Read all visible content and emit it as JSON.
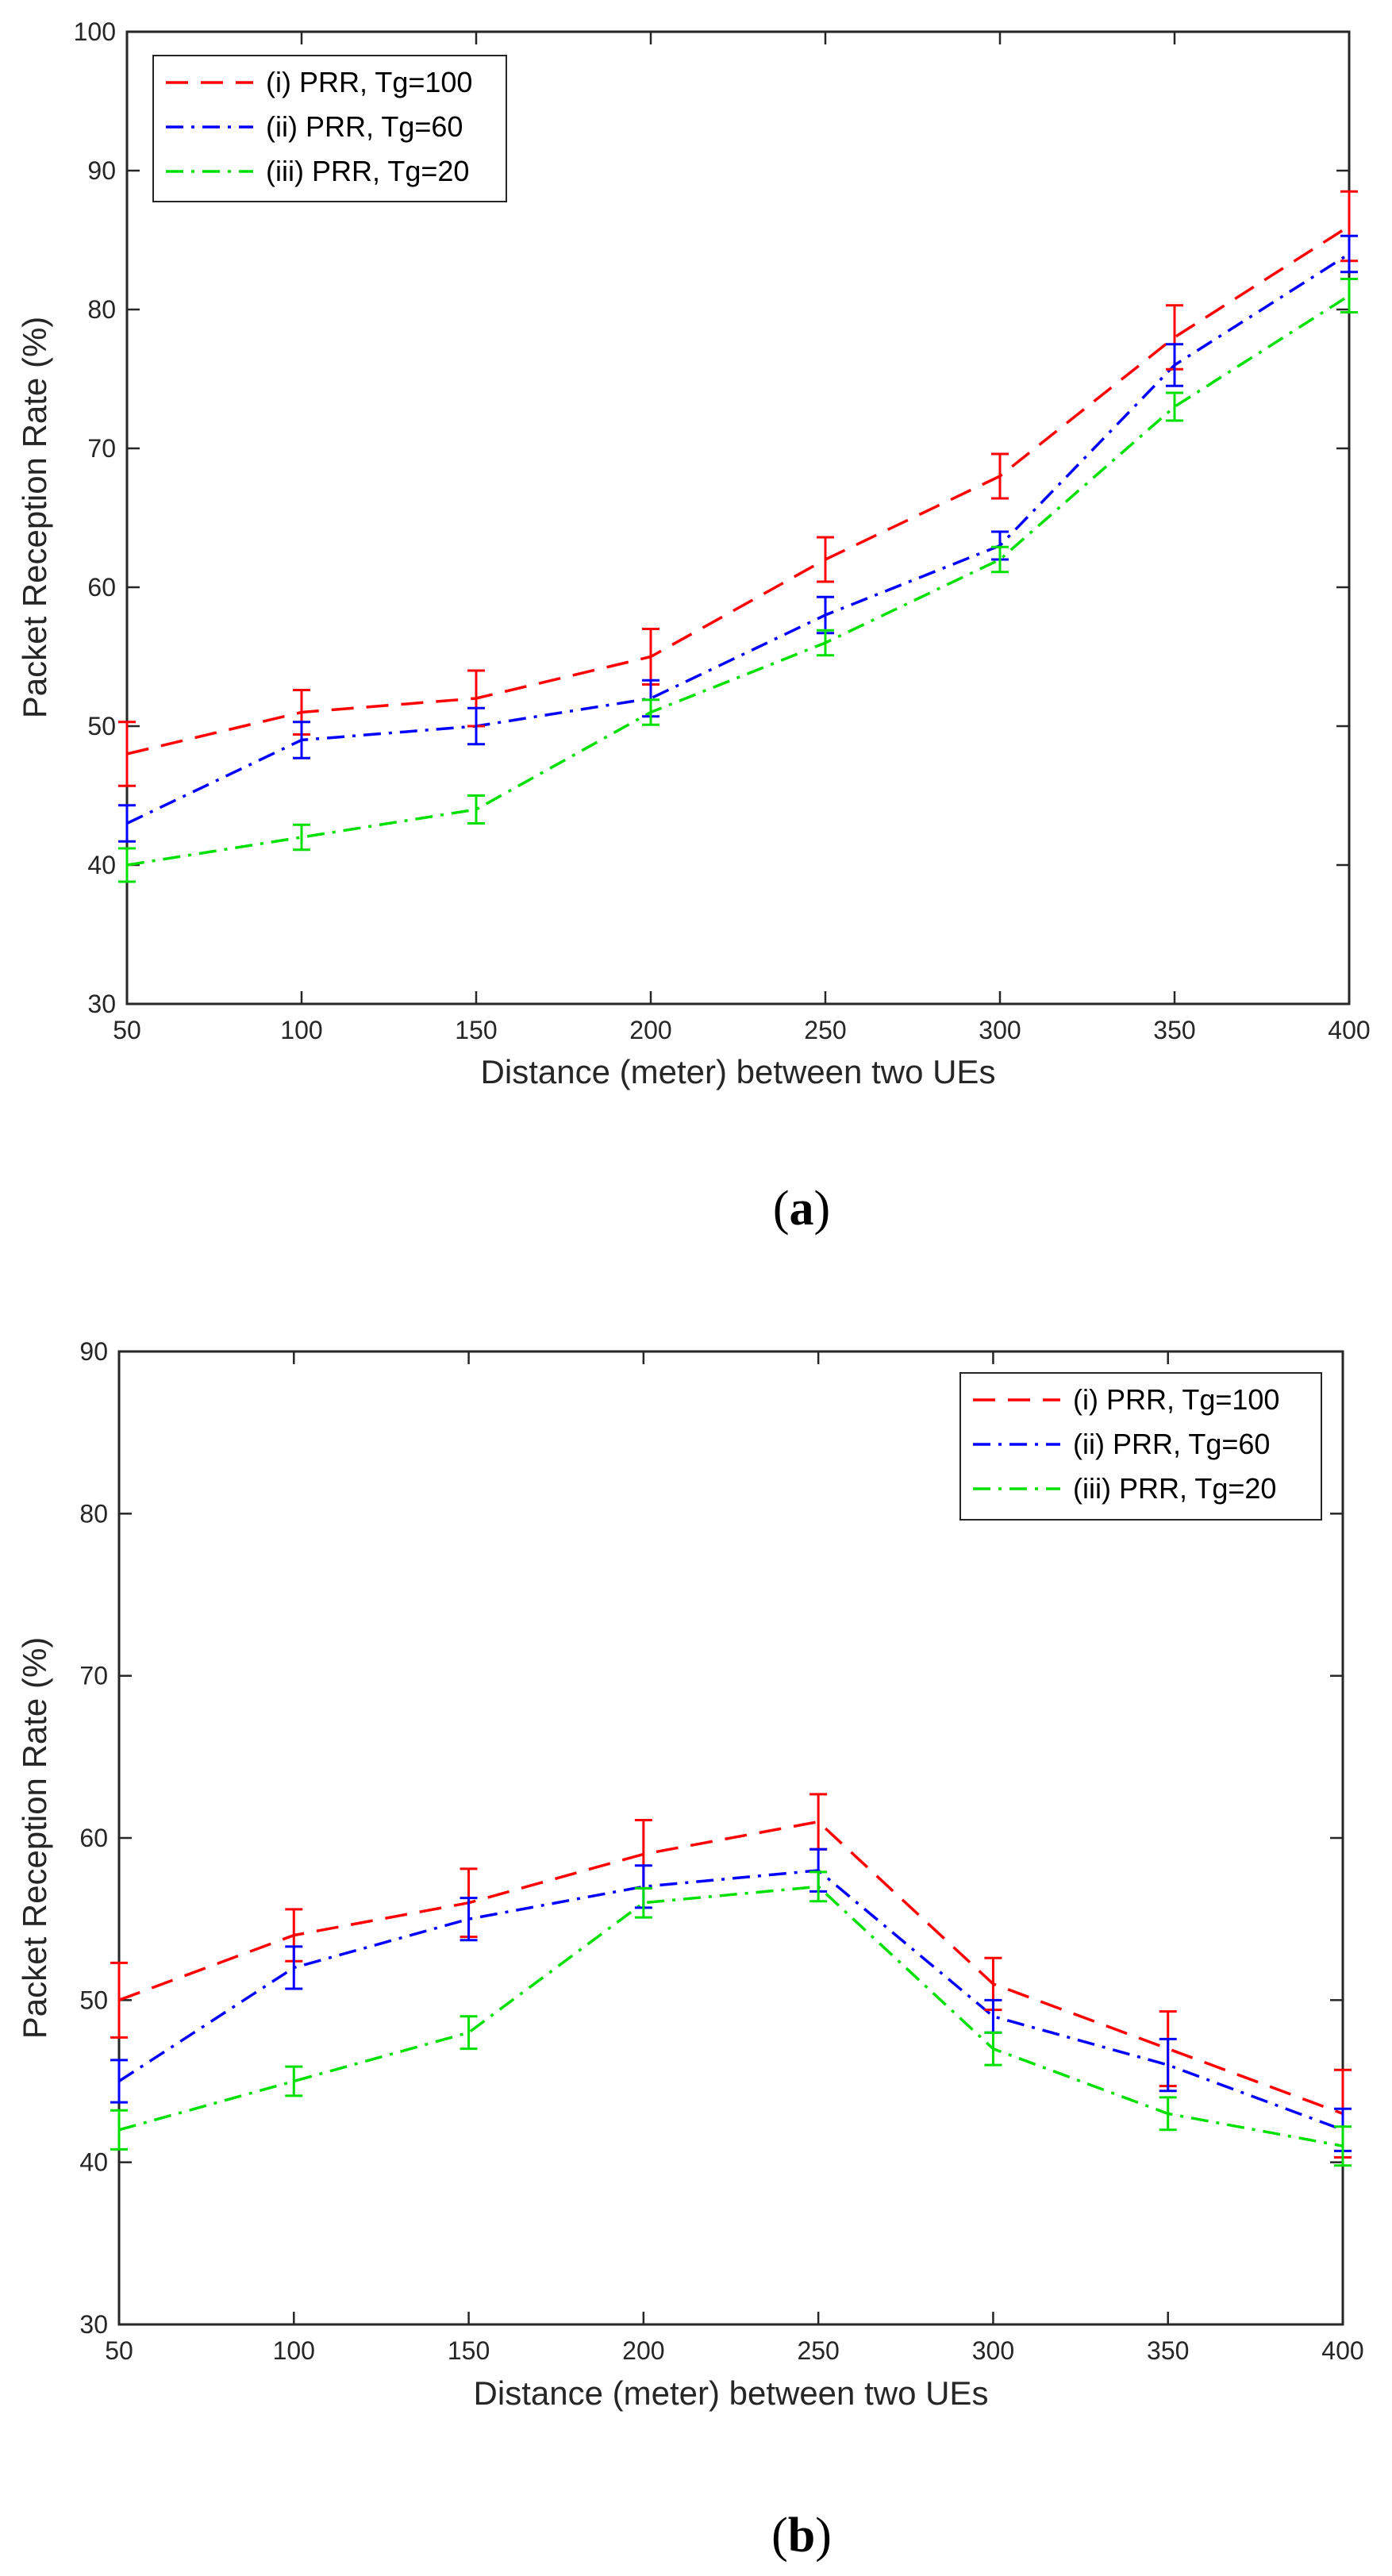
{
  "chart_data": [
    {
      "id": "a",
      "type": "line",
      "caption_letter": "a",
      "title": "",
      "xlabel": "Distance (meter) between two UEs",
      "ylabel": "Packet Reception Rate (%)",
      "xlim": [
        50,
        400
      ],
      "ylim": [
        30,
        100
      ],
      "grid": false,
      "legend_position": "top-left",
      "x": [
        50,
        100,
        150,
        200,
        250,
        300,
        350,
        400
      ],
      "xticks": [
        "50",
        "100",
        "150",
        "200",
        "250",
        "300",
        "350",
        "400"
      ],
      "yticks": [
        "30",
        "40",
        "50",
        "60",
        "70",
        "80",
        "90",
        "100"
      ],
      "series": [
        {
          "name": "(i) PRR, Tg=100",
          "color": "#ff0000",
          "dash": "dashed",
          "values": [
            48,
            51,
            52,
            55,
            62,
            68,
            78,
            86
          ],
          "errors": [
            2.3,
            1.6,
            2.0,
            2.0,
            1.6,
            1.6,
            2.3,
            2.5
          ]
        },
        {
          "name": "(ii) PRR, Tg=60",
          "color": "#0000ff",
          "dash": "dashdot",
          "values": [
            43,
            49,
            50,
            52,
            58,
            63,
            76,
            84
          ],
          "errors": [
            1.3,
            1.3,
            1.3,
            1.3,
            1.3,
            1.0,
            1.5,
            1.3
          ]
        },
        {
          "name": "(iii) PRR, Tg=20",
          "color": "#00e000",
          "dash": "dashdot",
          "values": [
            40,
            42,
            44,
            51,
            56,
            62,
            73,
            81
          ],
          "errors": [
            1.2,
            0.9,
            1.0,
            0.9,
            0.9,
            0.9,
            1.0,
            1.2
          ]
        }
      ]
    },
    {
      "id": "b",
      "type": "line",
      "caption_letter": "b",
      "title": "",
      "xlabel": "Distance (meter) between two UEs",
      "ylabel": "Packet Reception Rate (%)",
      "xlim": [
        50,
        400
      ],
      "ylim": [
        30,
        90
      ],
      "grid": false,
      "legend_position": "top-right",
      "x": [
        50,
        100,
        150,
        200,
        250,
        300,
        350,
        400
      ],
      "xticks": [
        "50",
        "100",
        "150",
        "200",
        "250",
        "300",
        "350",
        "400"
      ],
      "yticks": [
        "30",
        "40",
        "50",
        "60",
        "70",
        "80",
        "90"
      ],
      "series": [
        {
          "name": "(i) PRR, Tg=100",
          "color": "#ff0000",
          "dash": "dashed",
          "values": [
            50,
            54,
            56,
            59,
            61,
            51,
            47,
            43
          ],
          "errors": [
            2.3,
            1.6,
            2.1,
            2.1,
            1.7,
            1.6,
            2.3,
            2.7
          ]
        },
        {
          "name": "(ii) PRR, Tg=60",
          "color": "#0000ff",
          "dash": "dashdot",
          "values": [
            45,
            52,
            55,
            57,
            58,
            49,
            46,
            42
          ],
          "errors": [
            1.3,
            1.3,
            1.3,
            1.3,
            1.3,
            1.0,
            1.6,
            1.3
          ]
        },
        {
          "name": "(iii) PRR, Tg=20",
          "color": "#00e000",
          "dash": "dashdot",
          "values": [
            42,
            45,
            48,
            56,
            57,
            47,
            43,
            41
          ],
          "errors": [
            1.2,
            0.9,
            1.0,
            0.9,
            0.9,
            1.0,
            1.0,
            1.2
          ]
        }
      ]
    }
  ]
}
